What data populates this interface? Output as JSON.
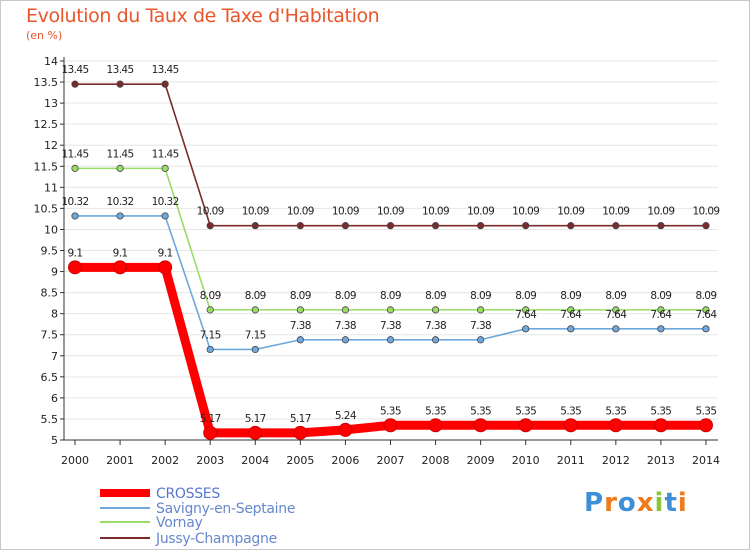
{
  "header": {
    "title": "Evolution du Taux de Taxe d'Habitation",
    "subtitle": "(en %)"
  },
  "logo": {
    "text": "Proxiti",
    "colors": [
      "#3f8fd8",
      "#f07a1a",
      "#3f8fd8",
      "#f07a1a",
      "#8cc63f",
      "#3f8fd8",
      "#f07a1a"
    ]
  },
  "chart_data": {
    "type": "line",
    "title": "Evolution du Taux de Taxe d'Habitation",
    "ylabel": "(en %)",
    "xlabel": "",
    "x": [
      "2000",
      "2001",
      "2002",
      "2003",
      "2004",
      "2005",
      "2006",
      "2007",
      "2008",
      "2009",
      "2010",
      "2011",
      "2012",
      "2013",
      "2014"
    ],
    "ylim": [
      5,
      14
    ],
    "yticks": [
      "5",
      "5.5",
      "6",
      "6.5",
      "7",
      "7.5",
      "8",
      "8.5",
      "9",
      "9.5",
      "10",
      "10.5",
      "11",
      "11.5",
      "12",
      "12.5",
      "13",
      "13.5",
      "14"
    ],
    "grid": "horizontal",
    "legend_position": "bottom-left",
    "series": [
      {
        "name": "CROSSES",
        "color": "#ff0000",
        "values": [
          9.1,
          9.1,
          9.1,
          5.17,
          5.17,
          5.17,
          5.24,
          5.35,
          5.35,
          5.35,
          5.35,
          5.35,
          5.35,
          5.35,
          5.35
        ],
        "labels": [
          "9.1",
          "9.1",
          "9.1",
          "5.17",
          "5.17",
          "5.17",
          "5.24",
          "5.35",
          "5.35",
          "5.35",
          "5.35",
          "5.35",
          "5.35",
          "5.35",
          "5.35"
        ]
      },
      {
        "name": "Savigny-en-Septaine",
        "color": "#6fa8dc",
        "values": [
          10.32,
          10.32,
          10.32,
          7.15,
          7.15,
          7.38,
          7.38,
          7.38,
          7.38,
          7.38,
          7.64,
          7.64,
          7.64,
          7.64,
          7.64
        ],
        "labels": [
          "10.32",
          "10.32",
          "10.32",
          "7.15",
          "7.15",
          "7.38",
          "7.38",
          "7.38",
          "7.38",
          "7.38",
          "7.64",
          "7.64",
          "7.64",
          "7.64",
          "7.64"
        ]
      },
      {
        "name": "Vornay",
        "color": "#99dd66",
        "values": [
          11.45,
          11.45,
          11.45,
          8.09,
          8.09,
          8.09,
          8.09,
          8.09,
          8.09,
          8.09,
          8.09,
          8.09,
          8.09,
          8.09,
          8.09
        ],
        "labels": [
          "11.45",
          "11.45",
          "11.45",
          "8.09",
          "8.09",
          "8.09",
          "8.09",
          "8.09",
          "8.09",
          "8.09",
          "8.09",
          "8.09",
          "8.09",
          "8.09",
          "8.09"
        ]
      },
      {
        "name": "Jussy-Champagne",
        "color": "#7b2b2b",
        "values": [
          13.45,
          13.45,
          13.45,
          10.09,
          10.09,
          10.09,
          10.09,
          10.09,
          10.09,
          10.09,
          10.09,
          10.09,
          10.09,
          10.09,
          10.09
        ],
        "labels": [
          "13.45",
          "13.45",
          "13.45",
          "10.09",
          "10.09",
          "10.09",
          "10.09",
          "10.09",
          "10.09",
          "10.09",
          "10.09",
          "10.09",
          "10.09",
          "10.09",
          "10.09"
        ]
      }
    ]
  }
}
